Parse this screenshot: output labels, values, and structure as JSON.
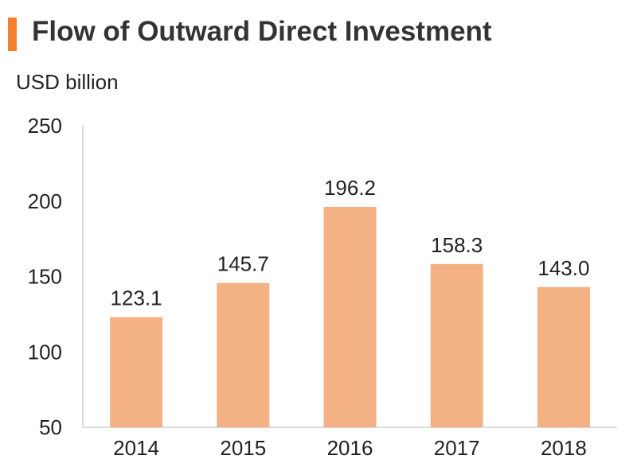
{
  "header": {
    "title": "Flow of Outward Direct Investment",
    "accent_color": "#F4802F"
  },
  "chart_data": {
    "type": "bar",
    "title": "Flow of Outward Direct Investment",
    "ylabel": "USD billion",
    "xlabel": "",
    "categories": [
      "2014",
      "2015",
      "2016",
      "2017",
      "2018"
    ],
    "values": [
      123.1,
      145.7,
      196.2,
      158.3,
      143.0
    ],
    "value_labels": [
      "123.1",
      "145.7",
      "196.2",
      "158.3",
      "143.0"
    ],
    "ylim": [
      50,
      250
    ],
    "yticks": [
      "50",
      "100",
      "150",
      "200",
      "250"
    ],
    "bar_color": "#F4B183",
    "grid": false,
    "legend": "none"
  }
}
